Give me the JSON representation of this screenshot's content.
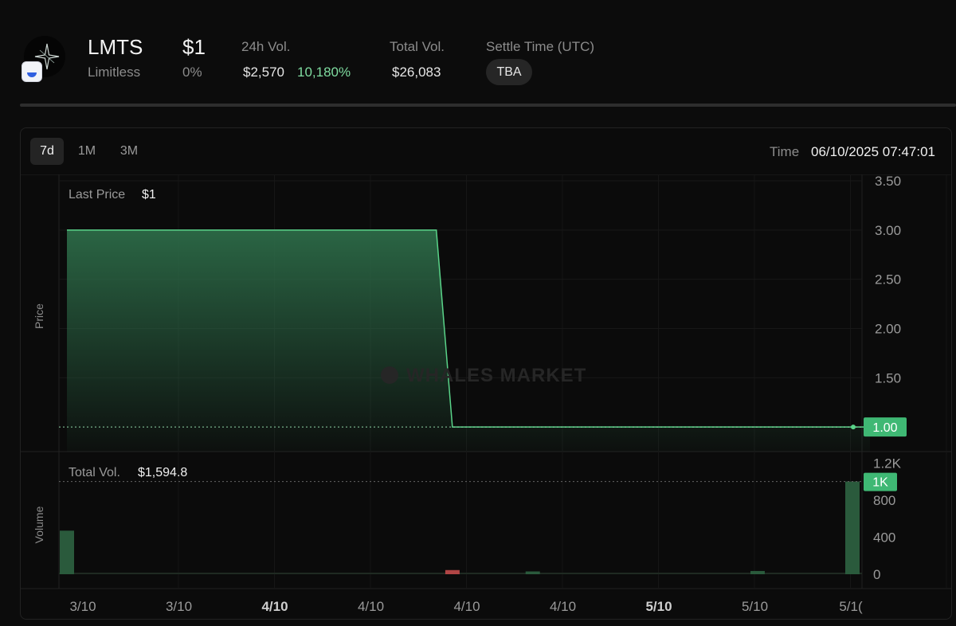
{
  "token": {
    "symbol": "LMTS",
    "name": "Limitless",
    "price": "$1",
    "change": "0%"
  },
  "stats": {
    "vol24h_label": "24h Vol.",
    "vol24h_value": "$2,570",
    "vol24h_change": "10,180%",
    "total_vol_label": "Total Vol.",
    "total_vol_value": "$26,083",
    "settle_label": "Settle Time (UTC)",
    "settle_value": "TBA"
  },
  "tabs": [
    {
      "label": "7d",
      "active": true
    },
    {
      "label": "1M",
      "active": false
    },
    {
      "label": "3M",
      "active": false
    }
  ],
  "time_label": "Time",
  "time_value": "06/10/2025 07:47:01",
  "watermark": "WHALES MARKET",
  "colors": {
    "accent_green": "#5ad489",
    "up_green": "#7fdca0",
    "down_red": "#b04545"
  },
  "chart_data": [
    {
      "type": "area",
      "ylabel": "Price",
      "legend_label": "Last Price",
      "legend_value": "$1",
      "ylim": [
        0.75,
        3.5
      ],
      "yticks": [
        "3.50",
        "3.00",
        "2.50",
        "2.00",
        "1.50"
      ],
      "y_tick_values": [
        3.5,
        3.0,
        2.5,
        2.0,
        1.5
      ],
      "last_value_label": "1.00",
      "last_value": 1.0,
      "x": [
        0,
        0.46,
        0.48,
        1.0
      ],
      "y": [
        3.0,
        3.0,
        1.0,
        1.0
      ]
    },
    {
      "type": "bar",
      "ylabel": "Volume",
      "legend_label": "Total Vol.",
      "legend_value": "$1,594.8",
      "ylim": [
        0,
        1200
      ],
      "yticks": [
        "1.2K",
        "800",
        "400",
        "0"
      ],
      "y_tick_values": [
        1200,
        800,
        400,
        0
      ],
      "last_value_label": "1K",
      "last_value": 1000,
      "bars": [
        {
          "x": 0.01,
          "value": 470,
          "dir": "up"
        },
        {
          "x": 0.49,
          "value": 45,
          "dir": "down"
        },
        {
          "x": 0.59,
          "value": 30,
          "dir": "up"
        },
        {
          "x": 0.87,
          "value": 35,
          "dir": "up"
        },
        {
          "x": 0.995,
          "value": 1000,
          "dir": "up"
        }
      ],
      "x_ticks": [
        {
          "label": "3/10",
          "bold": false
        },
        {
          "label": "3/10",
          "bold": false
        },
        {
          "label": "4/10",
          "bold": true
        },
        {
          "label": "4/10",
          "bold": false
        },
        {
          "label": "4/10",
          "bold": false
        },
        {
          "label": "4/10",
          "bold": false
        },
        {
          "label": "5/10",
          "bold": true
        },
        {
          "label": "5/10",
          "bold": false
        },
        {
          "label": "5/1(",
          "bold": false
        }
      ]
    }
  ]
}
